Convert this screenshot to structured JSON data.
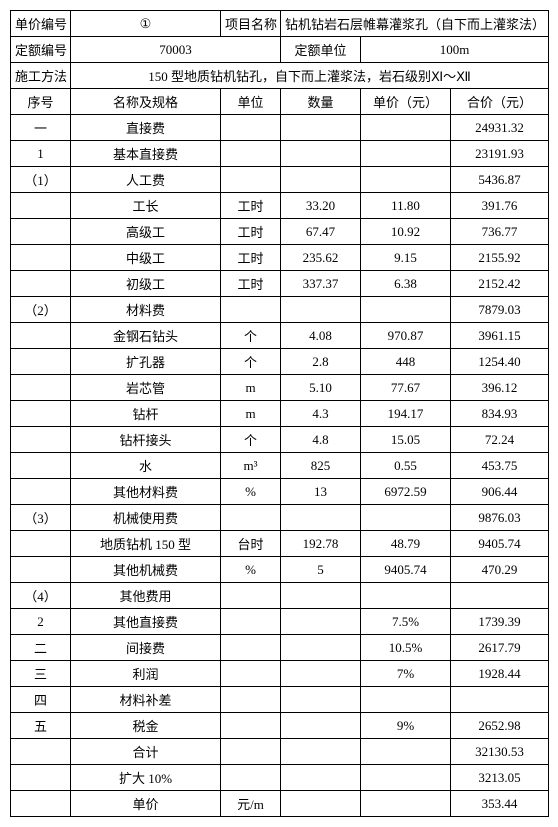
{
  "header": {
    "unit_price_no_label": "单价编号",
    "unit_price_no_value": "①",
    "project_name_label": "项目名称",
    "project_name_value": "钻机钻岩石层帷幕灌浆孔（自下而上灌浆法）",
    "quota_no_label": "定额编号",
    "quota_no_value": "70003",
    "quota_unit_label": "定额单位",
    "quota_unit_value": "100m",
    "method_label": "施工方法",
    "method_value": "150 型地质钻机钻孔，自下而上灌浆法，岩石级别Ⅺ～Ⅻ"
  },
  "cols": {
    "seq": "序号",
    "name": "名称及规格",
    "unit": "单位",
    "qty": "数量",
    "price": "单价（元）",
    "total": "合价（元）"
  },
  "rows": [
    {
      "seq": "一",
      "name": "直接费",
      "unit": "",
      "qty": "",
      "price": "",
      "total": "24931.32"
    },
    {
      "seq": "1",
      "name": "基本直接费",
      "unit": "",
      "qty": "",
      "price": "",
      "total": "23191.93"
    },
    {
      "seq": "（1）",
      "name": "人工费",
      "unit": "",
      "qty": "",
      "price": "",
      "total": "5436.87"
    },
    {
      "seq": "",
      "name": "工长",
      "unit": "工时",
      "qty": "33.20",
      "price": "11.80",
      "total": "391.76"
    },
    {
      "seq": "",
      "name": "高级工",
      "unit": "工时",
      "qty": "67.47",
      "price": "10.92",
      "total": "736.77"
    },
    {
      "seq": "",
      "name": "中级工",
      "unit": "工时",
      "qty": "235.62",
      "price": "9.15",
      "total": "2155.92"
    },
    {
      "seq": "",
      "name": "初级工",
      "unit": "工时",
      "qty": "337.37",
      "price": "6.38",
      "total": "2152.42"
    },
    {
      "seq": "（2）",
      "name": "材料费",
      "unit": "",
      "qty": "",
      "price": "",
      "total": "7879.03"
    },
    {
      "seq": "",
      "name": "金钢石钻头",
      "unit": "个",
      "qty": "4.08",
      "price": "970.87",
      "total": "3961.15"
    },
    {
      "seq": "",
      "name": "扩孔器",
      "unit": "个",
      "qty": "2.8",
      "price": "448",
      "total": "1254.40"
    },
    {
      "seq": "",
      "name": "岩芯管",
      "unit": "m",
      "qty": "5.10",
      "price": "77.67",
      "total": "396.12"
    },
    {
      "seq": "",
      "name": "钻杆",
      "unit": "m",
      "qty": "4.3",
      "price": "194.17",
      "total": "834.93"
    },
    {
      "seq": "",
      "name": "钻杆接头",
      "unit": "个",
      "qty": "4.8",
      "price": "15.05",
      "total": "72.24"
    },
    {
      "seq": "",
      "name": "水",
      "unit": "m³",
      "qty": "825",
      "price": "0.55",
      "total": "453.75"
    },
    {
      "seq": "",
      "name": "其他材料费",
      "unit": "%",
      "qty": "13",
      "price": "6972.59",
      "total": "906.44"
    },
    {
      "seq": "（3）",
      "name": "机械使用费",
      "unit": "",
      "qty": "",
      "price": "",
      "total": "9876.03"
    },
    {
      "seq": "",
      "name": "地质钻机 150 型",
      "unit": "台时",
      "qty": "192.78",
      "price": "48.79",
      "total": "9405.74"
    },
    {
      "seq": "",
      "name": "其他机械费",
      "unit": "%",
      "qty": "5",
      "price": "9405.74",
      "total": "470.29"
    },
    {
      "seq": "（4）",
      "name": "其他费用",
      "unit": "",
      "qty": "",
      "price": "",
      "total": ""
    },
    {
      "seq": "2",
      "name": "其他直接费",
      "unit": "",
      "qty": "",
      "price": "7.5%",
      "total": "1739.39"
    },
    {
      "seq": "二",
      "name": "间接费",
      "unit": "",
      "qty": "",
      "price": "10.5%",
      "total": "2617.79"
    },
    {
      "seq": "三",
      "name": "利润",
      "unit": "",
      "qty": "",
      "price": "7%",
      "total": "1928.44"
    },
    {
      "seq": "四",
      "name": "材料补差",
      "unit": "",
      "qty": "",
      "price": "",
      "total": ""
    },
    {
      "seq": "五",
      "name": "税金",
      "unit": "",
      "qty": "",
      "price": "9%",
      "total": "2652.98"
    },
    {
      "seq": "",
      "name": "合计",
      "unit": "",
      "qty": "",
      "price": "",
      "total": "32130.53"
    },
    {
      "seq": "",
      "name": "扩大 10%",
      "unit": "",
      "qty": "",
      "price": "",
      "total": "3213.05"
    },
    {
      "seq": "",
      "name": "单价",
      "unit": "元/m",
      "qty": "",
      "price": "",
      "total": "353.44"
    }
  ]
}
